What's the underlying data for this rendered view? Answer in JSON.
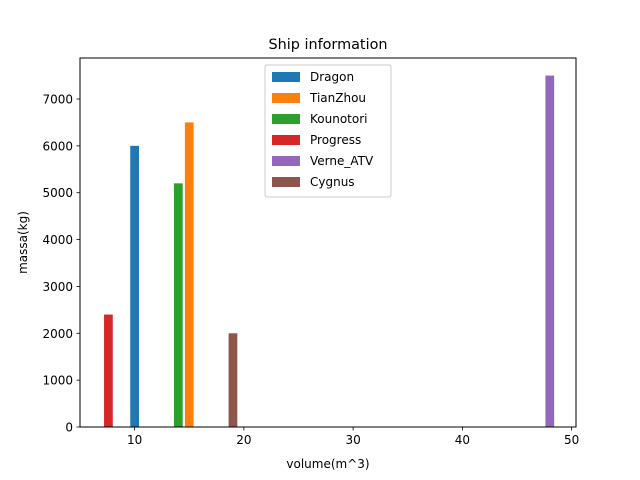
{
  "chart_data": {
    "type": "bar",
    "title": "Ship information",
    "xlabel": "volume(m^3)",
    "ylabel": "massa(kg)",
    "xlim": [
      5,
      50.4
    ],
    "ylim": [
      0,
      7875
    ],
    "xticks": [
      10,
      20,
      30,
      40,
      50
    ],
    "yticks": [
      0,
      1000,
      2000,
      3000,
      4000,
      5000,
      6000,
      7000
    ],
    "bar_width": 0.8,
    "legend_position": "upper-center",
    "grid": false,
    "series": [
      {
        "name": "Dragon",
        "x": 10,
        "value": 6000,
        "color": "#1f77b4"
      },
      {
        "name": "TianZhou",
        "x": 15,
        "value": 6500,
        "color": "#ff7f0e"
      },
      {
        "name": "Kounotori",
        "x": 14,
        "value": 5200,
        "color": "#2ca02c"
      },
      {
        "name": "Progress",
        "x": 7.6,
        "value": 2400,
        "color": "#d62728"
      },
      {
        "name": "Verne_ATV",
        "x": 48,
        "value": 7500,
        "color": "#9467bd"
      },
      {
        "name": "Cygnus",
        "x": 19,
        "value": 2000,
        "color": "#8c564b"
      }
    ]
  }
}
